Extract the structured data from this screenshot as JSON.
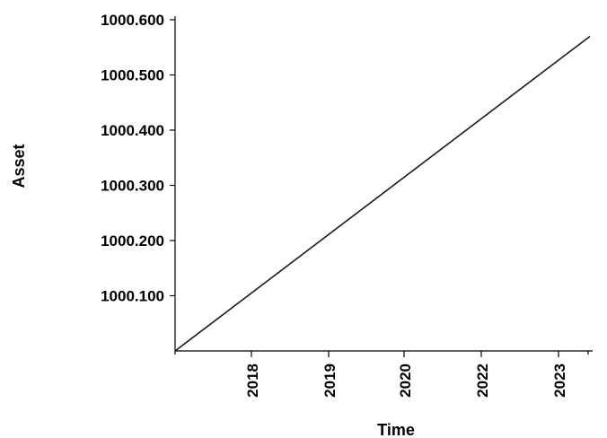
{
  "chart_data": {
    "type": "line",
    "title": "",
    "xlabel": "Time",
    "ylabel": "Asset",
    "x_tick_labels": [
      "2018",
      "2019",
      "2020",
      "2022",
      "2023"
    ],
    "y_tick_labels": [
      "1000.100",
      "1000.200",
      "1000.300",
      "1000.400",
      "1000.500",
      "1000.600"
    ],
    "y_ticks": [
      1000.1,
      1000.2,
      1000.3,
      1000.4,
      1000.5,
      1000.6
    ],
    "ylim": [
      1000.0,
      1000.6
    ],
    "grid": false,
    "series": [
      {
        "x": [
          "2017-01-01",
          "2023-06-01"
        ],
        "values": [
          1000.0,
          1000.57
        ]
      }
    ],
    "colors": {
      "line": "#1a1a1a",
      "axis": "#000000"
    }
  }
}
